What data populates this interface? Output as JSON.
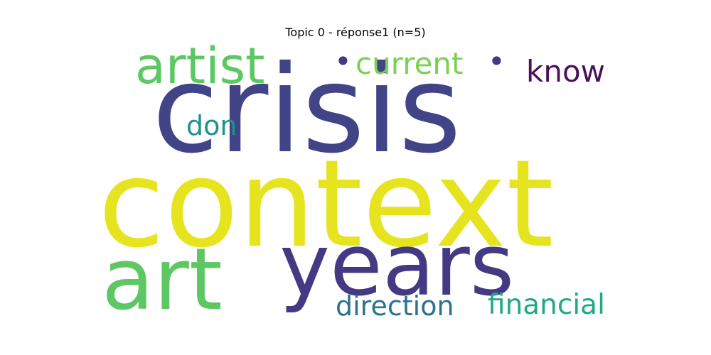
{
  "title": "Topic 0 - réponse1 (n=5)",
  "words": [
    {
      "text": "context",
      "color": "#E6E31F"
    },
    {
      "text": "crisis",
      "color": "#414487"
    },
    {
      "text": "years",
      "color": "#443983"
    },
    {
      "text": "art",
      "color": "#5DC863"
    },
    {
      "text": "artist",
      "color": "#5CC863"
    },
    {
      "text": "current",
      "color": "#7AD151"
    },
    {
      "text": "know",
      "color": "#4B0F5B"
    },
    {
      "text": "don",
      "color": "#21918C"
    },
    {
      "text": "direction",
      "color": "#2C728E"
    },
    {
      "text": "financial",
      "color": "#22A884"
    },
    {
      "text": "•",
      "color": "#443983"
    },
    {
      "text": "•",
      "color": "#443983"
    }
  ]
}
